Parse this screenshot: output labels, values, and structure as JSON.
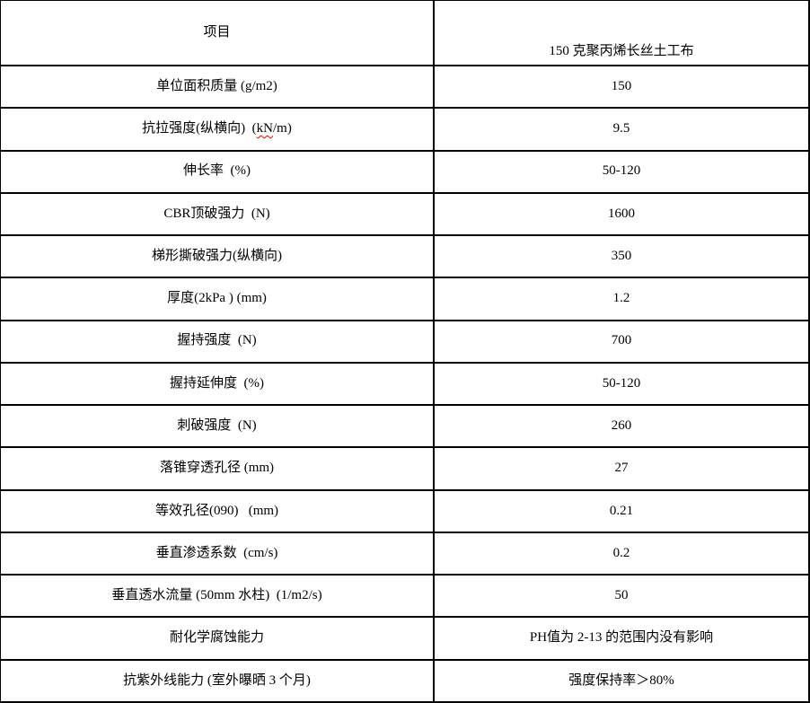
{
  "table": {
    "header": {
      "item_col": "项目",
      "value_col": "150 克聚丙烯长丝土工布"
    },
    "rows": [
      {
        "label": "单位面积质量 (g/m2)",
        "value": "150"
      },
      {
        "label_parts": [
          "抗拉强度(纵横向)  (",
          "kN",
          "/m)"
        ],
        "spellcheck_on": "kN",
        "value": "9.5"
      },
      {
        "label": "伸长率  (%)",
        "value": "50-120"
      },
      {
        "label": "CBR顶破强力  (N)",
        "value": "1600"
      },
      {
        "label": "梯形撕破强力(纵横向)",
        "value": "350"
      },
      {
        "label": "厚度(2kPa ) (mm)",
        "value": "1.2"
      },
      {
        "label": "握持强度  (N)",
        "value": "700"
      },
      {
        "label": "握持延伸度  (%)",
        "value": "50-120"
      },
      {
        "label": "刺破强度  (N)",
        "value": "260"
      },
      {
        "label": "落锥穿透孔径 (mm)",
        "value": "27"
      },
      {
        "label": "等效孔径(090)   (mm)",
        "value": "0.21"
      },
      {
        "label": "垂直渗透系数  (cm/s)",
        "value": "0.2"
      },
      {
        "label": "垂直透水流量 (50mm 水柱)  (1/m2/s)",
        "value": "50"
      },
      {
        "label": "耐化学腐蚀能力",
        "value": "PH值为 2-13 的范围内没有影响"
      },
      {
        "label": "抗紫外线能力 (室外曝晒 3 个月)",
        "value": "强度保持率＞80%"
      }
    ]
  },
  "colors": {
    "border": "#000000",
    "text": "#000000",
    "background": "#ffffff",
    "spellcheck_underline": "#ff0000"
  }
}
